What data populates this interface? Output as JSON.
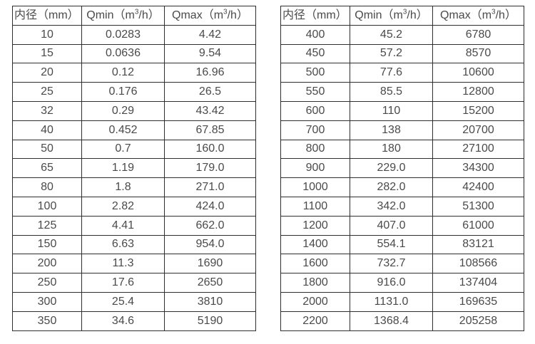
{
  "colors": {
    "background": "#ffffff",
    "border": "#2e2e2e",
    "text": "#4a4a4a"
  },
  "tables": [
    {
      "name": "flow-table-small-diameters",
      "headers": [
        "内径（mm）",
        "Qmin（m³/h）",
        "Qmax（m³/h）"
      ],
      "rows": [
        [
          "10",
          "0.0283",
          "4.42"
        ],
        [
          "15",
          "0.0636",
          "9.54"
        ],
        [
          "20",
          "0.12",
          "16.96"
        ],
        [
          "25",
          "0.176",
          "26.5"
        ],
        [
          "32",
          "0.29",
          "43.42"
        ],
        [
          "40",
          "0.452",
          "67.85"
        ],
        [
          "50",
          "0.7",
          "160.0"
        ],
        [
          "65",
          "1.19",
          "179.0"
        ],
        [
          "80",
          "1.8",
          "271.0"
        ],
        [
          "100",
          "2.82",
          "424.0"
        ],
        [
          "125",
          "4.41",
          "662.0"
        ],
        [
          "150",
          "6.63",
          "954.0"
        ],
        [
          "200",
          "11.3",
          "1690"
        ],
        [
          "250",
          "17.6",
          "2650"
        ],
        [
          "300",
          "25.4",
          "3810"
        ],
        [
          "350",
          "34.6",
          "5190"
        ]
      ]
    },
    {
      "name": "flow-table-large-diameters",
      "headers": [
        "内径（mm）",
        "Qmin（m³/h）",
        "Qmax（m³/h）"
      ],
      "rows": [
        [
          "400",
          "45.2",
          "6780"
        ],
        [
          "450",
          "57.2",
          "8570"
        ],
        [
          "500",
          "77.6",
          "10600"
        ],
        [
          "550",
          "85.5",
          "12800"
        ],
        [
          "600",
          "110",
          "15200"
        ],
        [
          "700",
          "138",
          "20700"
        ],
        [
          "800",
          "180",
          "27100"
        ],
        [
          "900",
          "229.0",
          "34300"
        ],
        [
          "1000",
          "282.0",
          "42400"
        ],
        [
          "1100",
          "342.0",
          "51300"
        ],
        [
          "1200",
          "407.0",
          "61000"
        ],
        [
          "1400",
          "554.1",
          "83121"
        ],
        [
          "1600",
          "732.7",
          "108566"
        ],
        [
          "1800",
          "916.0",
          "137404"
        ],
        [
          "2000",
          "1131.0",
          "169635"
        ],
        [
          "2200",
          "1368.4",
          "205258"
        ]
      ]
    }
  ],
  "header_names": [
    "header-diameter",
    "header-qmin",
    "header-qmax"
  ]
}
